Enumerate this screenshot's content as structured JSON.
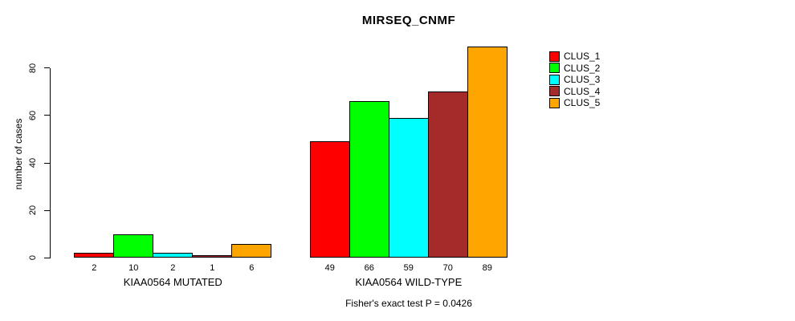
{
  "title": "MIRSEQ_CNMF",
  "y_axis": {
    "label": "number of cases",
    "ticks": [
      0,
      20,
      40,
      60,
      80
    ]
  },
  "caption": "Fisher's exact test P = 0.0426",
  "chart_data": {
    "type": "bar",
    "title": "MIRSEQ_CNMF",
    "ylabel": "number of cases",
    "xlabel": "",
    "ylim": [
      0,
      93
    ],
    "yticks": [
      0,
      20,
      40,
      60,
      80
    ],
    "grid": false,
    "legend_position": "right",
    "series": [
      "CLUS_1",
      "CLUS_2",
      "CLUS_3",
      "CLUS_4",
      "CLUS_5"
    ],
    "series_colors": [
      "#ff0000",
      "#00ff00",
      "#00ffff",
      "#a52a2a",
      "#ffa500"
    ],
    "groups": [
      {
        "label": "KIAA0564 MUTATED",
        "values": [
          2,
          10,
          2,
          1,
          6
        ]
      },
      {
        "label": "KIAA0564 WILD-TYPE",
        "values": [
          49,
          66,
          59,
          70,
          89
        ]
      }
    ],
    "annotation": "Fisher's exact test P = 0.0426"
  }
}
